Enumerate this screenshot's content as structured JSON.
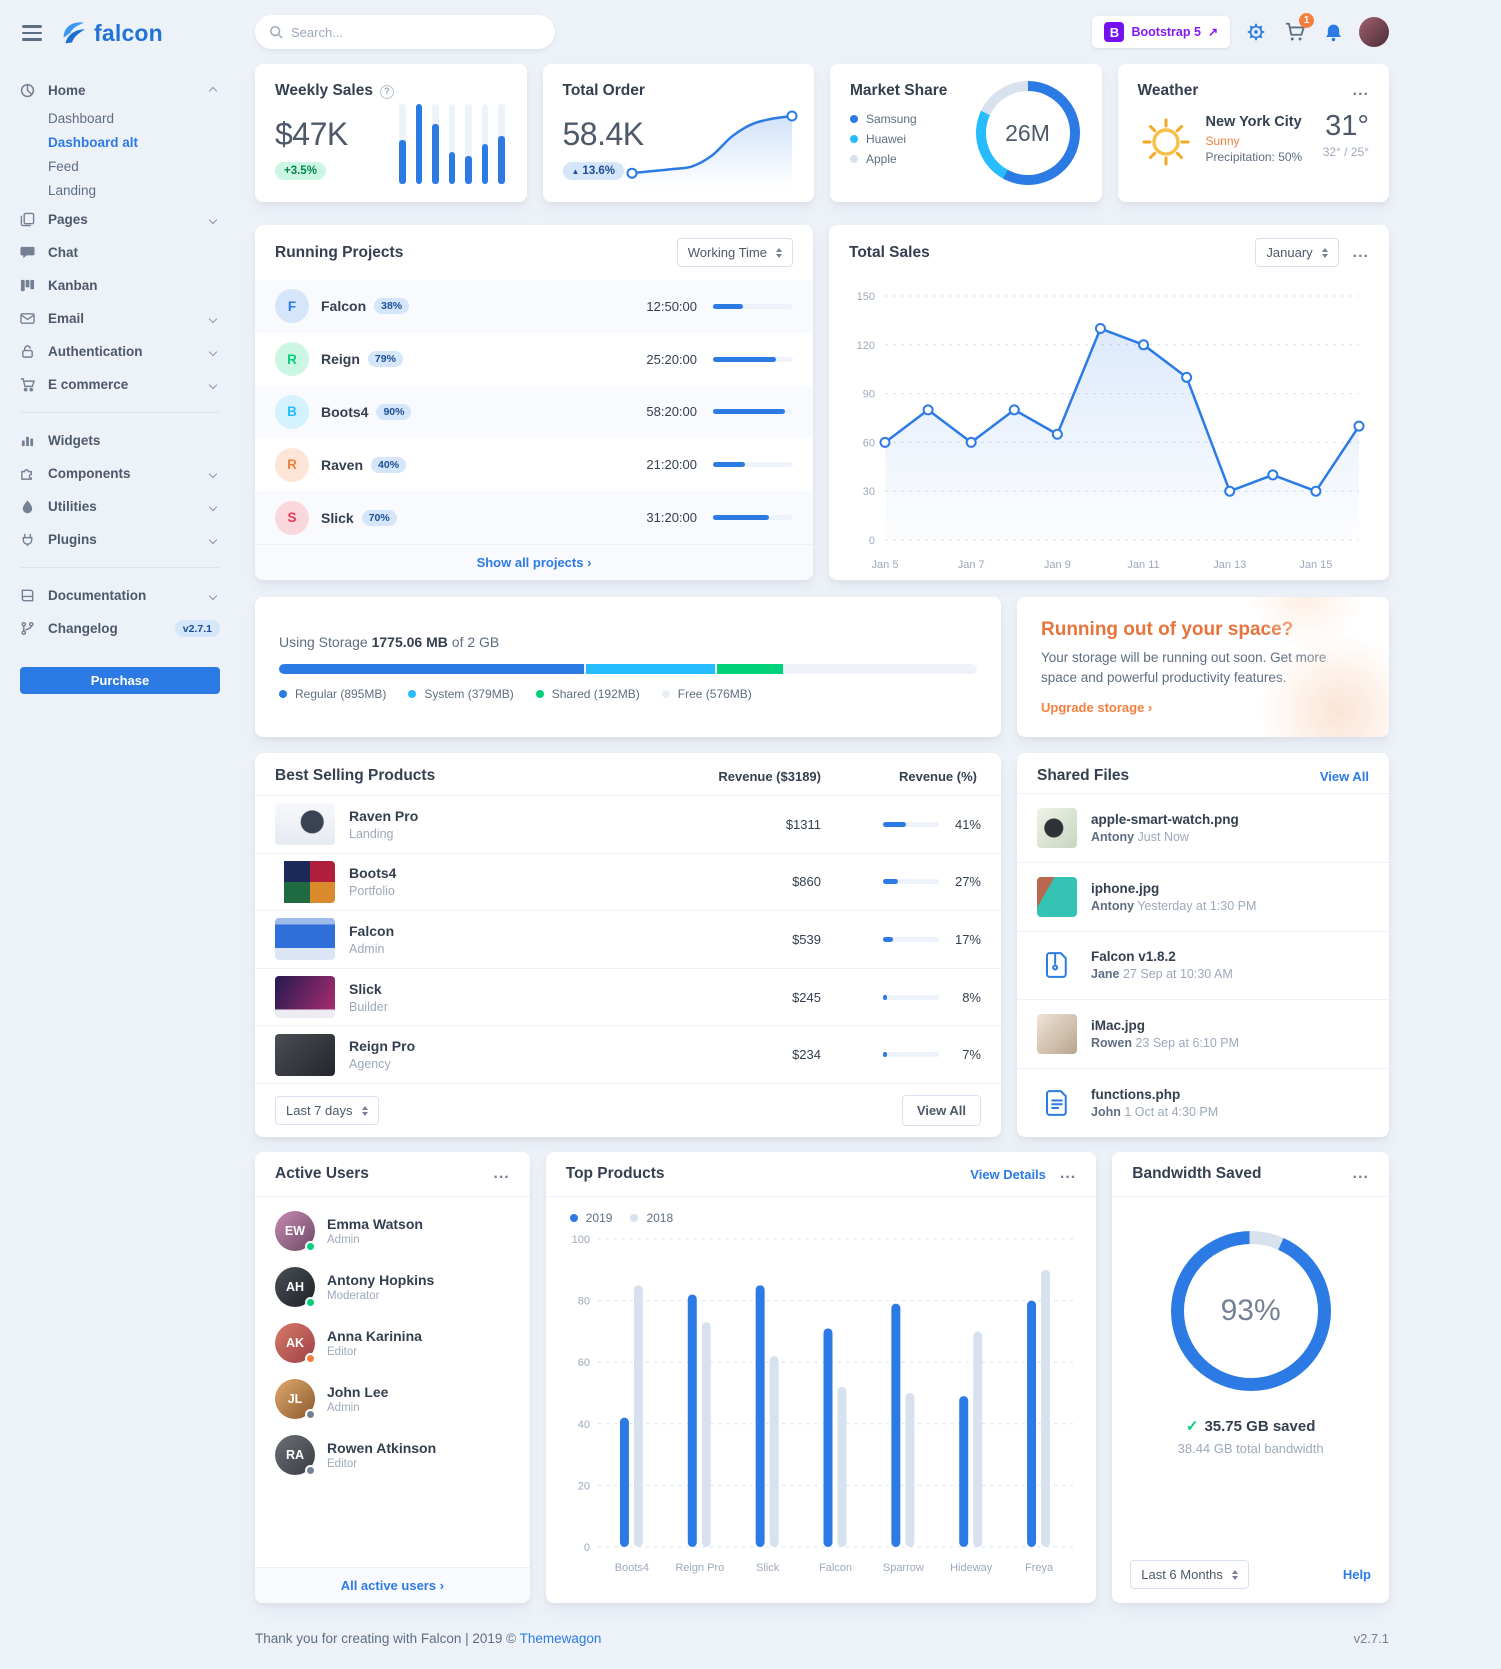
{
  "topbar": {
    "search_placeholder": "Search...",
    "bootstrap_letter": "B",
    "bootstrap_label": "Bootstrap 5",
    "cart_count": "1"
  },
  "glyphs": {
    "help": "?",
    "dots": "...",
    "caret_up": "▲",
    "check": "✓",
    "external": "↗"
  },
  "sidebar": {
    "logo_text": "falcon",
    "labels": {
      "home": "Home",
      "dashboard": "Dashboard",
      "dashboard_alt": "Dashboard alt",
      "feed": "Feed",
      "landing": "Landing",
      "pages": "Pages",
      "chat": "Chat",
      "kanban": "Kanban",
      "email": "Email",
      "authentication": "Authentication",
      "ecommerce": "E commerce",
      "widgets": "Widgets",
      "components": "Components",
      "utilities": "Utilities",
      "plugins": "Plugins",
      "documentation": "Documentation",
      "changelog": "Changelog"
    },
    "changelog_badge": "v2.7.1",
    "purchase_label": "Purchase"
  },
  "weekly_sales": {
    "title": "Weekly Sales",
    "value": "$47K",
    "badge": "+3.5%"
  },
  "total_order": {
    "title": "Total Order",
    "value": "58.4K",
    "badge": "13.6%"
  },
  "market_share": {
    "title": "Market Share",
    "center": "26M"
  },
  "weather": {
    "title": "Weather",
    "city": "New York City",
    "condition": "Sunny",
    "precipitation": "Precipitation: 50%",
    "temp": "31°",
    "range": "32° / 25°"
  },
  "running_projects": {
    "title": "Running Projects",
    "select": "Working Time",
    "footer": "Show all projects ›",
    "rows": [
      {
        "letter": "F",
        "name": "Falcon",
        "badge": "38%",
        "time": "12:50:00",
        "progress": 38
      },
      {
        "letter": "R",
        "name": "Reign",
        "badge": "79%",
        "time": "25:20:00",
        "progress": 79
      },
      {
        "letter": "B",
        "name": "Boots4",
        "badge": "90%",
        "time": "58:20:00",
        "progress": 90
      },
      {
        "letter": "R",
        "name": "Raven",
        "badge": "40%",
        "time": "21:20:00",
        "progress": 40
      },
      {
        "letter": "S",
        "name": "Slick",
        "badge": "70%",
        "time": "31:20:00",
        "progress": 70
      }
    ]
  },
  "total_sales": {
    "title": "Total Sales",
    "select": "January"
  },
  "storage": {
    "label": "Using Storage",
    "used": "1775.06 MB",
    "of": "of 2 GB",
    "segments": [
      {
        "label": "Regular (895MB)",
        "dot": "#2c7be5",
        "bar": "#2c7be5",
        "pct": 43.7
      },
      {
        "label": "System (379MB)",
        "dot": "#27bcfd",
        "bar": "#27bcfd",
        "pct": 18.5
      },
      {
        "label": "Shared (192MB)",
        "dot": "#00d27a",
        "bar": "#00d27a",
        "pct": 9.4
      },
      {
        "label": "Free (576MB)",
        "dot": "#e9eef5"
      }
    ]
  },
  "space_cta": {
    "title": "Running out of your space?",
    "body": "Your storage will be running out soon. Get more space and powerful productivity features.",
    "link": "Upgrade storage ›"
  },
  "best_selling": {
    "title": "Best Selling Products",
    "col_revenue": "Revenue ($3189)",
    "col_percent": "Revenue (%)",
    "select": "Last 7 days",
    "view_all": "View All",
    "rows": [
      {
        "name": "Raven Pro",
        "category": "Landing",
        "revenue": "$1311",
        "percent": "41%",
        "progress": 41
      },
      {
        "name": "Boots4",
        "category": "Portfolio",
        "revenue": "$860",
        "percent": "27%",
        "progress": 27
      },
      {
        "name": "Falcon",
        "category": "Admin",
        "revenue": "$539",
        "percent": "17%",
        "progress": 17
      },
      {
        "name": "Slick",
        "category": "Builder",
        "revenue": "$245",
        "percent": "8%",
        "progress": 8
      },
      {
        "name": "Reign Pro",
        "category": "Agency",
        "revenue": "$234",
        "percent": "7%",
        "progress": 7
      }
    ]
  },
  "shared_files": {
    "title": "Shared Files",
    "view_all": "View All",
    "items": [
      {
        "name": "apple-smart-watch.png",
        "user": "Antony",
        "time": "Just Now"
      },
      {
        "name": "iphone.jpg",
        "user": "Antony",
        "time": "Yesterday at 1:30 PM"
      },
      {
        "name": "Falcon v1.8.2",
        "user": "Jane",
        "time": "27 Sep at 10:30 AM"
      },
      {
        "name": "iMac.jpg",
        "user": "Rowen",
        "time": "23 Sep at 6:10 PM"
      },
      {
        "name": "functions.php",
        "user": "John",
        "time": "1 Oct at 4:30 PM"
      }
    ]
  },
  "active_users": {
    "title": "Active Users",
    "footer": "All active users ›",
    "users": [
      {
        "name": "Emma Watson",
        "role": "Admin",
        "initials": "EW"
      },
      {
        "name": "Antony Hopkins",
        "role": "Moderator",
        "initials": "AH"
      },
      {
        "name": "Anna Karinina",
        "role": "Editor",
        "initials": "AK"
      },
      {
        "name": "John Lee",
        "role": "Admin",
        "initials": "JL"
      },
      {
        "name": "Rowen Atkinson",
        "role": "Editor",
        "initials": "RA"
      }
    ]
  },
  "top_products": {
    "title": "Top Products",
    "view_details": "View Details"
  },
  "bandwidth": {
    "title": "Bandwidth Saved",
    "percent_label": "93%",
    "saved": "35.75 GB saved",
    "total": "38.44 GB total bandwidth",
    "select": "Last 6 Months",
    "help": "Help"
  },
  "footer": {
    "text": "Thank you for creating with Falcon | 2019 ©",
    "link": "Themewagon",
    "version": "v2.7.1"
  },
  "chart_data": [
    {
      "id": "weekly-sales",
      "type": "bar",
      "title": "Weekly Sales",
      "values": [
        55,
        100,
        75,
        40,
        35,
        50,
        60
      ],
      "color": "#2c7be5",
      "note": "mini bar sparkline, values as % of tallest bar"
    },
    {
      "id": "total-order",
      "type": "line",
      "title": "Total Order",
      "values": [
        1,
        1.3,
        1.6,
        2,
        3.6,
        6.4,
        8.2,
        9,
        9.4
      ],
      "color": "#2c7be5",
      "note": "smooth rising sparkline with end-point dots"
    },
    {
      "id": "market-share",
      "type": "pie",
      "title": "Market Share",
      "center": "26M",
      "segments": [
        {
          "label": "Samsung",
          "value": 58,
          "color": "#2c7be5"
        },
        {
          "label": "Huawei",
          "value": 24,
          "color": "#27bcfd"
        },
        {
          "label": "Apple",
          "value": 18,
          "color": "#d8e2ef"
        }
      ]
    },
    {
      "id": "total-sales",
      "type": "line",
      "title": "Total Sales",
      "x": [
        "Jan 5",
        "Jan 6",
        "Jan 7",
        "Jan 8",
        "Jan 9",
        "Jan 10",
        "Jan 11",
        "Jan 12",
        "Jan 13",
        "Jan 14",
        "Jan 15",
        "Jan 16"
      ],
      "values": [
        60,
        80,
        60,
        80,
        65,
        130,
        120,
        100,
        30,
        40,
        30,
        70
      ],
      "yticks": [
        0,
        30,
        60,
        90,
        120,
        150
      ],
      "ylim": [
        0,
        150
      ],
      "tick_every": 2,
      "color": "#2c7be5",
      "grid": "dashed horizontal",
      "legend": "none"
    },
    {
      "id": "top-products",
      "type": "bar",
      "title": "Top Products",
      "categories": [
        "Boots4",
        "Reign Pro",
        "Slick",
        "Falcon",
        "Sparrow",
        "Hideway",
        "Freya"
      ],
      "series": [
        {
          "name": "2019",
          "color": "#2c7be5",
          "values": [
            42,
            82,
            85,
            71,
            79,
            49,
            80
          ]
        },
        {
          "name": "2018",
          "color": "#d8e2ef",
          "values": [
            85,
            73,
            62,
            52,
            50,
            70,
            90
          ]
        }
      ],
      "yticks": [
        0,
        20,
        40,
        60,
        80,
        100
      ],
      "ylim": [
        0,
        100
      ],
      "legend_position": "top-left"
    },
    {
      "id": "bandwidth",
      "type": "gauge",
      "title": "Bandwidth Saved",
      "percent": 93,
      "color": "#2c7be5"
    }
  ]
}
